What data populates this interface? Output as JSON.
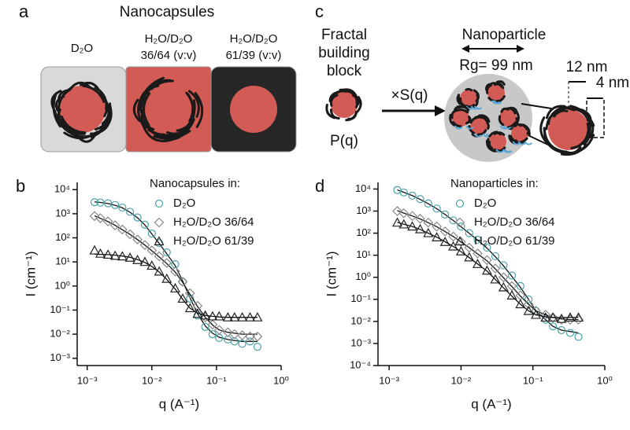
{
  "panel_labels": [
    "a",
    "b",
    "c",
    "d"
  ],
  "schematic_a": {
    "title": "Nanocapsules",
    "labels": [
      [
        "D₂O"
      ],
      [
        "H₂O/D₂O",
        "36/64 (v:v)"
      ],
      [
        "H₂O/D₂O",
        "61/39 (v:v)"
      ]
    ]
  },
  "schematic_c": {
    "block_label": [
      "Fractal",
      "building",
      "block"
    ],
    "form_factor": "P(q)",
    "operator": "×S(q)",
    "title": "Nanoparticle",
    "radius": "Rg= 99 nm",
    "core": "12 nm",
    "shell": "4 nm"
  },
  "chart_data": [
    {
      "type": "scatter",
      "log_x": true,
      "log_y": true,
      "legend_title": "Nanocapsules in:",
      "x_label": "q (A⁻¹)",
      "y_label": "I (cm⁻¹)",
      "xlim": [
        0.0007,
        1
      ],
      "xticks": [
        {
          "value": 0.001,
          "label": "10⁻³"
        },
        {
          "value": 0.01,
          "label": "10⁻²"
        },
        {
          "value": 0.1,
          "label": "10⁻¹"
        },
        {
          "value": 1,
          "label": "10⁰"
        }
      ],
      "ylim": [
        0.0005,
        20000
      ],
      "yticks": [
        {
          "value": 0.001,
          "label": "10⁻³"
        },
        {
          "value": 0.01,
          "label": "10⁻²"
        },
        {
          "value": 0.1,
          "label": "10⁻¹"
        },
        {
          "value": 1,
          "label": "10⁰"
        },
        {
          "value": 10,
          "label": "10¹"
        },
        {
          "value": 100,
          "label": "10²"
        },
        {
          "value": 1000,
          "label": "10³"
        },
        {
          "value": 10000,
          "label": "10⁴"
        }
      ],
      "x": [
        0.0013,
        0.0016,
        0.0021,
        0.0027,
        0.0035,
        0.0046,
        0.006,
        0.0078,
        0.01,
        0.013,
        0.017,
        0.023,
        0.03,
        0.039,
        0.051,
        0.067,
        0.087,
        0.11,
        0.15,
        0.19,
        0.25,
        0.33,
        0.43
      ],
      "series": [
        {
          "name": "D₂O",
          "color": "#4aa3a8",
          "marker": "circle",
          "values": [
            3000,
            2900,
            2700,
            2300,
            1800,
            1200,
            700,
            350,
            150,
            60,
            25,
            8,
            1.5,
            0.3,
            0.06,
            0.02,
            0.01,
            0.007,
            0.006,
            0.005,
            0.004,
            0.005,
            0.003
          ],
          "fit": [
            3100,
            2950,
            2650,
            2250,
            1750,
            1150,
            680,
            340,
            145,
            58,
            22,
            7,
            1.6,
            0.32,
            0.07,
            0.022,
            0.011,
            0.0075,
            0.006,
            0.0055,
            0.005,
            0.005,
            0.005
          ]
        },
        {
          "name": "H₂O/D₂O 36/64",
          "color": "#888888",
          "marker": "diamond",
          "values": [
            800,
            650,
            480,
            330,
            220,
            140,
            85,
            50,
            30,
            17,
            9,
            4,
            1.5,
            0.5,
            0.15,
            0.05,
            0.025,
            0.015,
            0.012,
            0.01,
            0.009,
            0.008,
            0.008
          ],
          "fit": [
            820,
            640,
            470,
            330,
            215,
            138,
            84,
            50,
            29,
            16,
            8.5,
            3.8,
            1.4,
            0.45,
            0.14,
            0.05,
            0.024,
            0.015,
            0.012,
            0.011,
            0.01,
            0.01,
            0.01
          ]
        },
        {
          "name": "H₂O/D₂O 61/39",
          "color": "#222222",
          "marker": "triangle",
          "values": [
            30,
            22,
            20,
            18,
            17,
            15,
            12,
            10,
            7,
            4,
            2,
            0.8,
            0.3,
            0.12,
            0.07,
            0.06,
            0.055,
            0.055,
            0.05,
            0.05,
            0.05,
            0.05,
            0.05
          ],
          "fit": [
            21,
            20.5,
            20,
            19,
            17.5,
            15.5,
            12.5,
            9.5,
            6.5,
            3.8,
            1.9,
            0.75,
            0.28,
            0.12,
            0.075,
            0.06,
            0.055,
            0.052,
            0.05,
            0.05,
            0.05,
            0.05,
            0.05
          ]
        }
      ]
    },
    {
      "type": "scatter",
      "log_x": true,
      "log_y": true,
      "legend_title": "Nanoparticles in:",
      "x_label": "q (A⁻¹)",
      "y_label": "I (cm⁻¹)",
      "xlim": [
        0.0007,
        1
      ],
      "xticks": [
        {
          "value": 0.001,
          "label": "10⁻³"
        },
        {
          "value": 0.01,
          "label": "10⁻²"
        },
        {
          "value": 0.1,
          "label": "10⁻¹"
        },
        {
          "value": 1,
          "label": "10⁰"
        }
      ],
      "ylim": [
        0.0001,
        20000
      ],
      "yticks": [
        {
          "value": 0.0001,
          "label": "10⁻⁴"
        },
        {
          "value": 0.001,
          "label": "10⁻³"
        },
        {
          "value": 0.01,
          "label": "10⁻²"
        },
        {
          "value": 0.1,
          "label": "10⁻¹"
        },
        {
          "value": 1,
          "label": "10⁰"
        },
        {
          "value": 10,
          "label": "10¹"
        },
        {
          "value": 100,
          "label": "10²"
        },
        {
          "value": 1000,
          "label": "10³"
        },
        {
          "value": 10000,
          "label": "10⁴"
        }
      ],
      "x": [
        0.0013,
        0.0016,
        0.0021,
        0.0027,
        0.0035,
        0.0046,
        0.006,
        0.0078,
        0.01,
        0.013,
        0.017,
        0.023,
        0.03,
        0.039,
        0.051,
        0.067,
        0.087,
        0.11,
        0.15,
        0.19,
        0.25,
        0.33,
        0.43
      ],
      "series": [
        {
          "name": "D₂O",
          "color": "#4aa3a8",
          "marker": "circle",
          "values": [
            9000,
            7000,
            5000,
            3500,
            2200,
            1300,
            700,
            380,
            200,
            100,
            50,
            22,
            9,
            3.5,
            1.2,
            0.4,
            0.1,
            0.03,
            0.012,
            0.006,
            0.004,
            0.003,
            0.002
          ],
          "fit": [
            9200,
            7100,
            5000,
            3400,
            2150,
            1280,
            700,
            375,
            195,
            98,
            48,
            21,
            8.5,
            3.3,
            1.1,
            0.35,
            0.1,
            0.03,
            0.012,
            0.006,
            0.004,
            0.0035,
            0.003
          ]
        },
        {
          "name": "H₂O/D₂O 36/64",
          "color": "#888888",
          "marker": "diamond",
          "values": [
            1000,
            800,
            600,
            450,
            300,
            200,
            120,
            70,
            40,
            22,
            12,
            6,
            2.5,
            1,
            0.4,
            0.15,
            0.06,
            0.03,
            0.02,
            0.015,
            0.012,
            0.012,
            0.012
          ],
          "fit": [
            1050,
            810,
            600,
            440,
            300,
            195,
            118,
            70,
            40,
            22,
            11.5,
            5.6,
            2.4,
            0.95,
            0.38,
            0.14,
            0.06,
            0.03,
            0.02,
            0.015,
            0.013,
            0.012,
            0.012
          ]
        },
        {
          "name": "H₂O/D₂O 61/39",
          "color": "#222222",
          "marker": "triangle",
          "values": [
            300,
            250,
            200,
            150,
            100,
            65,
            40,
            25,
            15,
            8,
            4,
            2,
            0.8,
            0.35,
            0.15,
            0.06,
            0.03,
            0.02,
            0.015,
            0.015,
            0.013,
            0.015,
            0.015
          ],
          "fit": [
            310,
            255,
            200,
            148,
            100,
            66,
            41,
            25,
            14.5,
            7.8,
            4,
            1.9,
            0.8,
            0.33,
            0.14,
            0.06,
            0.03,
            0.02,
            0.016,
            0.015,
            0.015,
            0.015,
            0.015
          ]
        }
      ]
    }
  ]
}
